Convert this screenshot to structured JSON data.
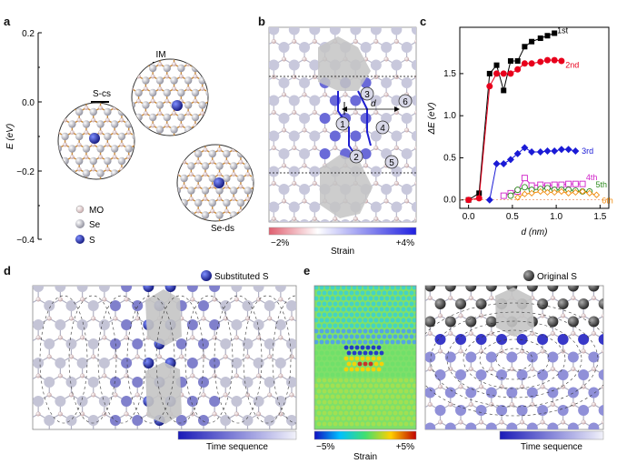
{
  "panels": {
    "a": "a",
    "b": "b",
    "c": "c",
    "d": "d",
    "e": "e"
  },
  "panel_a": {
    "ylabel": "E (eV)",
    "yticks": [
      "0.2",
      "0.0",
      "−0.2",
      "−0.4"
    ],
    "levels": [
      "S-cs",
      "IM",
      "Se-ds"
    ],
    "legend": [
      "MO",
      "Se",
      "S"
    ],
    "colors": {
      "MO": "#e8d0d0",
      "Se": "#b8b8c4",
      "S": "#1f2fb8"
    }
  },
  "panel_b": {
    "site_labels": [
      "1",
      "2",
      "3",
      "4",
      "5",
      "6"
    ],
    "distance_label": "d",
    "colorbar": {
      "min": "−2%",
      "max": "+4%",
      "label": "Strain"
    }
  },
  "chart_data": {
    "type": "line",
    "xlabel": "d (nm)",
    "ylabel": "ΔE (eV)",
    "xlim": [
      -0.1,
      1.6
    ],
    "ylim": [
      -0.1,
      2.05
    ],
    "xticks": [
      "0.0",
      "0.5",
      "1.0",
      "1.5"
    ],
    "yticks": [
      "0.0",
      "0.5",
      "1.0",
      "1.5"
    ],
    "series": [
      {
        "name": "1st",
        "color": "#000000",
        "marker": "square-filled",
        "x": [
          0.0,
          0.12,
          0.24,
          0.32,
          0.4,
          0.48,
          0.56,
          0.64,
          0.72,
          0.82,
          0.9,
          0.98
        ],
        "y": [
          0.0,
          0.08,
          1.5,
          1.6,
          1.3,
          1.65,
          1.65,
          1.82,
          1.88,
          1.92,
          1.95,
          1.98
        ]
      },
      {
        "name": "2nd",
        "color": "#e8001c",
        "marker": "circle-filled",
        "x": [
          0.0,
          0.12,
          0.24,
          0.32,
          0.4,
          0.48,
          0.56,
          0.64,
          0.72,
          0.82,
          0.9,
          0.98,
          1.06
        ],
        "y": [
          0.0,
          0.02,
          1.35,
          1.5,
          1.5,
          1.5,
          1.55,
          1.62,
          1.62,
          1.64,
          1.66,
          1.66,
          1.65
        ]
      },
      {
        "name": "3rd",
        "color": "#1a1ad6",
        "marker": "diamond-filled",
        "x": [
          0.24,
          0.32,
          0.4,
          0.48,
          0.56,
          0.64,
          0.72,
          0.82,
          0.9,
          0.98,
          1.06,
          1.14,
          1.22
        ],
        "y": [
          0.0,
          0.43,
          0.43,
          0.48,
          0.55,
          0.62,
          0.57,
          0.57,
          0.58,
          0.58,
          0.6,
          0.6,
          0.58
        ]
      },
      {
        "name": "4th",
        "color": "#d020c8",
        "marker": "square-open",
        "x": [
          0.4,
          0.48,
          0.56,
          0.64,
          0.72,
          0.82,
          0.9,
          0.98,
          1.06,
          1.14,
          1.22,
          1.3
        ],
        "y": [
          0.05,
          0.08,
          0.1,
          0.26,
          0.17,
          0.18,
          0.17,
          0.18,
          0.18,
          0.19,
          0.19,
          0.19
        ]
      },
      {
        "name": "5th",
        "color": "#2e8b1e",
        "marker": "circle-open",
        "x": [
          0.48,
          0.56,
          0.64,
          0.72,
          0.82,
          0.9,
          0.98,
          1.06,
          1.14,
          1.22,
          1.3,
          1.38
        ],
        "y": [
          0.05,
          0.12,
          0.15,
          0.12,
          0.13,
          0.14,
          0.12,
          0.12,
          0.12,
          0.11,
          0.1,
          0.1
        ]
      },
      {
        "name": "6th",
        "color": "#f08c10",
        "marker": "diamond-open",
        "x": [
          0.56,
          0.64,
          0.72,
          0.82,
          0.9,
          0.98,
          1.06,
          1.14,
          1.22,
          1.3,
          1.38,
          1.46
        ],
        "y": [
          0.03,
          0.07,
          0.08,
          0.1,
          0.09,
          0.09,
          0.1,
          0.08,
          0.09,
          0.1,
          0.08,
          0.06
        ]
      }
    ]
  },
  "panel_d": {
    "legend": "Substituted S",
    "colorbar_label": "Time sequence"
  },
  "panel_e": {
    "legend": "Original S",
    "strain_colorbar": {
      "min": "−5%",
      "max": "+5%",
      "label": "Strain"
    },
    "colorbar_label": "Time sequence"
  }
}
